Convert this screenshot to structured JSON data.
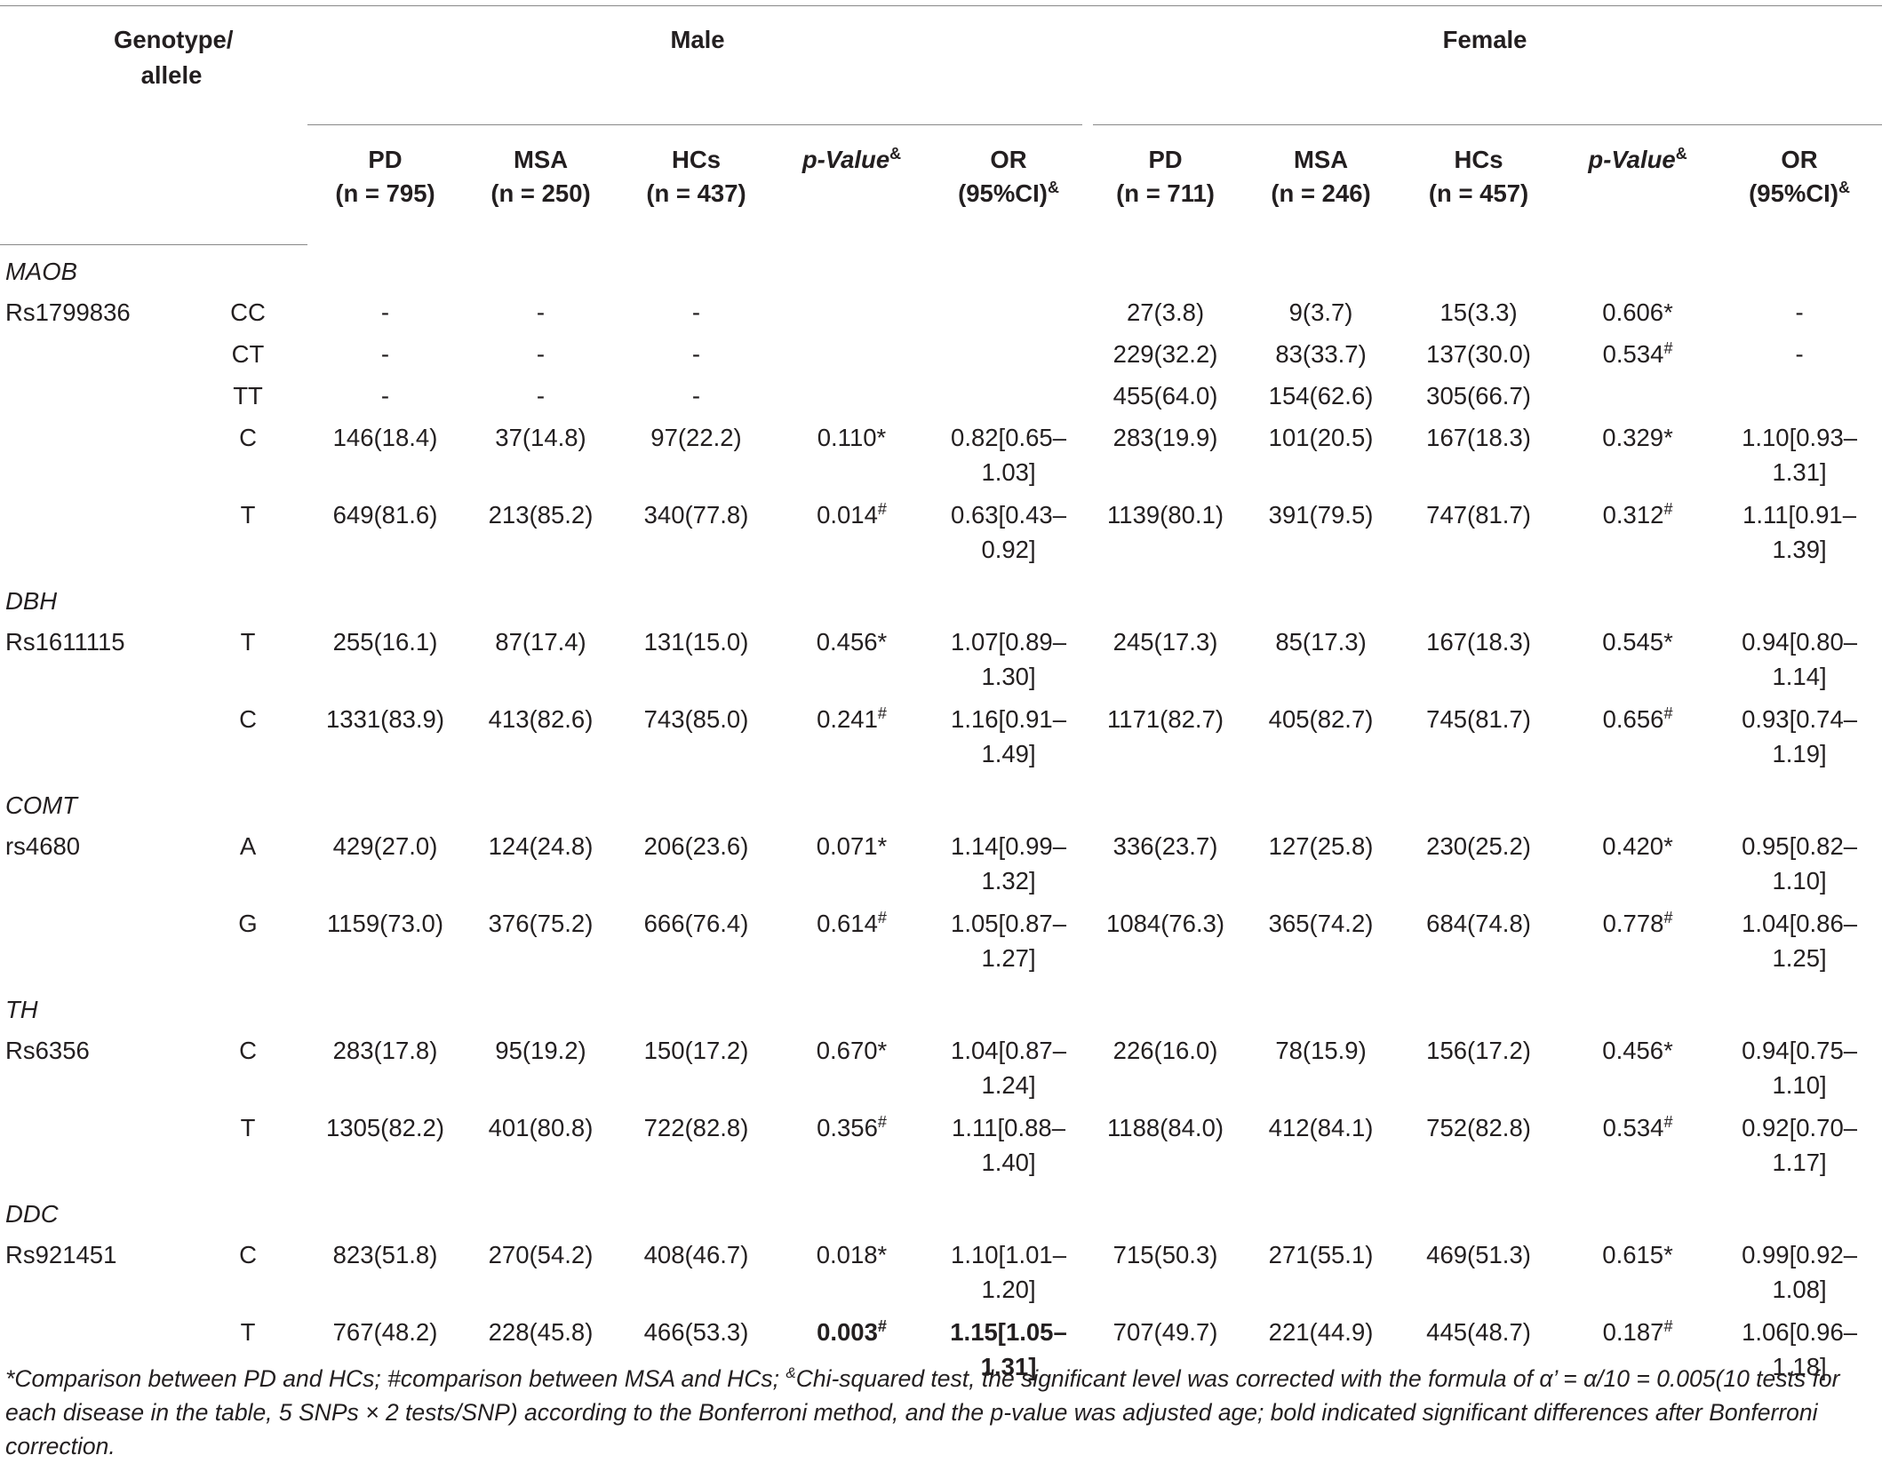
{
  "header": {
    "genotype_allele": "Genotype/ allele",
    "male": "Male",
    "female": "Female",
    "cols": [
      {
        "l1": "PD",
        "l2": "(n = 795)"
      },
      {
        "l1": "MSA",
        "l2": "(n = 250)"
      },
      {
        "l1": "HCs",
        "l2": "(n = 437)"
      },
      {
        "l1": "p-Value",
        "sup": "&"
      },
      {
        "l1": "OR",
        "l2": "(95%CI)",
        "sup": "&"
      },
      {
        "l1": "PD",
        "l2": "(n = 711)"
      },
      {
        "l1": "MSA",
        "l2": "(n = 246)"
      },
      {
        "l1": "HCs",
        "l2": "(n = 457)"
      },
      {
        "l1": "p-Value",
        "sup": "&"
      },
      {
        "l1": "OR",
        "l2": "(95%CI)",
        "sup": "&"
      }
    ]
  },
  "genes": [
    {
      "name": "MAOB",
      "snp": "Rs1799836",
      "rows": [
        {
          "allele": "CC",
          "m_pd": "-",
          "m_msa": "-",
          "m_hc": "-",
          "m_p": "",
          "m_p_sym": "",
          "m_or": "",
          "f_pd": "27(3.8)",
          "f_msa": "9(3.7)",
          "f_hc": "15(3.3)",
          "f_p": "0.606*",
          "f_p_sym": "",
          "f_or": "-"
        },
        {
          "allele": "CT",
          "m_pd": "-",
          "m_msa": "-",
          "m_hc": "-",
          "m_p": "",
          "m_p_sym": "",
          "m_or": "",
          "f_pd": "229(32.2)",
          "f_msa": "83(33.7)",
          "f_hc": "137(30.0)",
          "f_p": "0.534",
          "f_p_sym": "#",
          "f_or": "-"
        },
        {
          "allele": "TT",
          "m_pd": "-",
          "m_msa": "-",
          "m_hc": "-",
          "m_p": "",
          "m_p_sym": "",
          "m_or": "",
          "f_pd": "455(64.0)",
          "f_msa": "154(62.6)",
          "f_hc": "305(66.7)",
          "f_p": "",
          "f_p_sym": "",
          "f_or": ""
        },
        {
          "allele": "C",
          "m_pd": "146(18.4)",
          "m_msa": "37(14.8)",
          "m_hc": "97(22.2)",
          "m_p": "0.110*",
          "m_p_sym": "",
          "m_or": "0.82[0.65– 1.03]",
          "f_pd": "283(19.9)",
          "f_msa": "101(20.5)",
          "f_hc": "167(18.3)",
          "f_p": "0.329*",
          "f_p_sym": "",
          "f_or": "1.10[0.93– 1.31]"
        },
        {
          "allele": "T",
          "m_pd": "649(81.6)",
          "m_msa": "213(85.2)",
          "m_hc": "340(77.8)",
          "m_p": "0.014",
          "m_p_sym": "#",
          "m_or": "0.63[0.43– 0.92]",
          "f_pd": "1139(80.1)",
          "f_msa": "391(79.5)",
          "f_hc": "747(81.7)",
          "f_p": "0.312",
          "f_p_sym": "#",
          "f_or": "1.11[0.91– 1.39]"
        }
      ]
    },
    {
      "name": "DBH",
      "snp": "Rs1611115",
      "rows": [
        {
          "allele": "T",
          "m_pd": "255(16.1)",
          "m_msa": "87(17.4)",
          "m_hc": "131(15.0)",
          "m_p": "0.456*",
          "m_p_sym": "",
          "m_or": "1.07[0.89– 1.30]",
          "f_pd": "245(17.3)",
          "f_msa": "85(17.3)",
          "f_hc": "167(18.3)",
          "f_p": "0.545*",
          "f_p_sym": "",
          "f_or": "0.94[0.80– 1.14]"
        },
        {
          "allele": "C",
          "m_pd": "1331(83.9)",
          "m_msa": "413(82.6)",
          "m_hc": "743(85.0)",
          "m_p": "0.241",
          "m_p_sym": "#",
          "m_or": "1.16[0.91– 1.49]",
          "f_pd": "1171(82.7)",
          "f_msa": "405(82.7)",
          "f_hc": "745(81.7)",
          "f_p": "0.656",
          "f_p_sym": "#",
          "f_or": "0.93[0.74– 1.19]"
        }
      ]
    },
    {
      "name": "COMT",
      "snp": "rs4680",
      "rows": [
        {
          "allele": "A",
          "m_pd": "429(27.0)",
          "m_msa": "124(24.8)",
          "m_hc": "206(23.6)",
          "m_p": "0.071*",
          "m_p_sym": "",
          "m_or": "1.14[0.99– 1.32]",
          "f_pd": "336(23.7)",
          "f_msa": "127(25.8)",
          "f_hc": "230(25.2)",
          "f_p": "0.420*",
          "f_p_sym": "",
          "f_or": "0.95[0.82– 1.10]"
        },
        {
          "allele": "G",
          "m_pd": "1159(73.0)",
          "m_msa": "376(75.2)",
          "m_hc": "666(76.4)",
          "m_p": "0.614",
          "m_p_sym": "#",
          "m_or": "1.05[0.87– 1.27]",
          "f_pd": "1084(76.3)",
          "f_msa": "365(74.2)",
          "f_hc": "684(74.8)",
          "f_p": "0.778",
          "f_p_sym": "#",
          "f_or": "1.04[0.86– 1.25]"
        }
      ]
    },
    {
      "name": "TH",
      "snp": "Rs6356",
      "rows": [
        {
          "allele": "C",
          "m_pd": "283(17.8)",
          "m_msa": "95(19.2)",
          "m_hc": "150(17.2)",
          "m_p": "0.670*",
          "m_p_sym": "",
          "m_or": "1.04[0.87– 1.24]",
          "f_pd": "226(16.0)",
          "f_msa": "78(15.9)",
          "f_hc": "156(17.2)",
          "f_p": "0.456*",
          "f_p_sym": "",
          "f_or": "0.94[0.75– 1.10]"
        },
        {
          "allele": "T",
          "m_pd": "1305(82.2)",
          "m_msa": "401(80.8)",
          "m_hc": "722(82.8)",
          "m_p": "0.356",
          "m_p_sym": "#",
          "m_or": "1.11[0.88– 1.40]",
          "f_pd": "1188(84.0)",
          "f_msa": "412(84.1)",
          "f_hc": "752(82.8)",
          "f_p": "0.534",
          "f_p_sym": "#",
          "f_or": "0.92[0.70– 1.17]"
        }
      ]
    },
    {
      "name": "DDC",
      "snp": "Rs921451",
      "rows": [
        {
          "allele": "C",
          "m_pd": "823(51.8)",
          "m_msa": "270(54.2)",
          "m_hc": "408(46.7)",
          "m_p": "0.018*",
          "m_p_sym": "",
          "m_or": "1.10[1.01– 1.20]",
          "f_pd": "715(50.3)",
          "f_msa": "271(55.1)",
          "f_hc": "469(51.3)",
          "f_p": "0.615*",
          "f_p_sym": "",
          "f_or": "0.99[0.92– 1.08]"
        },
        {
          "allele": "T",
          "m_pd": "767(48.2)",
          "m_msa": "228(45.8)",
          "m_hc": "466(53.3)",
          "m_p": "0.003",
          "m_p_sym": "#",
          "m_or": "1.15[1.05– 1.31]",
          "m_bold": true,
          "f_pd": "707(49.7)",
          "f_msa": "221(44.9)",
          "f_hc": "445(48.7)",
          "f_p": "0.187",
          "f_p_sym": "#",
          "f_or": "1.06[0.96– 1.18]"
        }
      ]
    }
  ],
  "footnote": {
    "part1": "*Comparison between PD and HCs; #comparison between MSA and HCs; ",
    "sup": "&",
    "part2": "Chi-squared test, the significant level was corrected with the formula of α’ = α/10 = 0.005(10 tests for each disease in the table, 5 SNPs × 2 tests/SNP) according to the Bonferroni method, and the p-value was adjusted age; bold indicated significant differences after Bonferroni correction."
  }
}
